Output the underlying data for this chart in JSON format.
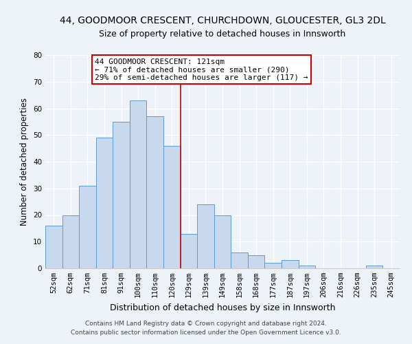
{
  "title_line1": "44, GOODMOOR CRESCENT, CHURCHDOWN, GLOUCESTER, GL3 2DL",
  "title_line2": "Size of property relative to detached houses in Innsworth",
  "xlabel": "Distribution of detached houses by size in Innsworth",
  "ylabel": "Number of detached properties",
  "bin_labels": [
    "52sqm",
    "62sqm",
    "71sqm",
    "81sqm",
    "91sqm",
    "100sqm",
    "110sqm",
    "120sqm",
    "129sqm",
    "139sqm",
    "149sqm",
    "158sqm",
    "168sqm",
    "177sqm",
    "187sqm",
    "197sqm",
    "206sqm",
    "216sqm",
    "226sqm",
    "235sqm",
    "245sqm"
  ],
  "bar_heights": [
    16,
    20,
    31,
    49,
    55,
    63,
    57,
    46,
    13,
    24,
    20,
    6,
    5,
    2,
    3,
    1,
    0,
    0,
    0,
    1,
    0
  ],
  "bar_color": "#c8d9ed",
  "bar_edge_color": "#5b9bd5",
  "vline_x": 7.5,
  "vline_color": "#cc0000",
  "annotation_title": "44 GOODMOOR CRESCENT: 121sqm",
  "annotation_line1": "← 71% of detached houses are smaller (290)",
  "annotation_line2": "29% of semi-detached houses are larger (117) →",
  "annotation_box_facecolor": "#ffffff",
  "annotation_box_edgecolor": "#cc0000",
  "ylim": [
    0,
    80
  ],
  "yticks": [
    0,
    10,
    20,
    30,
    40,
    50,
    60,
    70,
    80
  ],
  "footer_line1": "Contains HM Land Registry data © Crown copyright and database right 2024.",
  "footer_line2": "Contains public sector information licensed under the Open Government Licence v3.0.",
  "bg_color": "#eef2f9",
  "grid_color": "#ffffff",
  "title1_fontsize": 10,
  "title2_fontsize": 9,
  "ylabel_fontsize": 8.5,
  "xlabel_fontsize": 9,
  "tick_fontsize": 7.5,
  "ann_fontsize": 8,
  "footer_fontsize": 6.5
}
